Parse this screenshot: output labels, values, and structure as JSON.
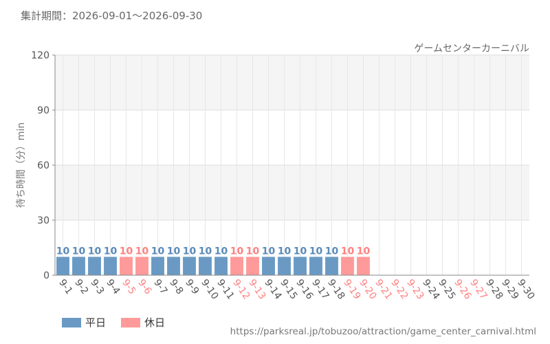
{
  "header": {
    "period": "集計期間：2026-09-01～2026-09-30",
    "attraction": "ゲームセンターカーニバル"
  },
  "footer": {
    "source": "https://parksreal.jp/tobuzoo/attraction/game_center_carnival.html"
  },
  "colors": {
    "weekday": "#6a9ac4",
    "holiday": "#ff9a9a",
    "holiday_text": "#ff8080",
    "weekday_text": "#5a8ab8"
  },
  "chart_data": {
    "type": "bar",
    "title": "",
    "ylabel": "待ち時間（分）min",
    "xlabel": "",
    "ylim": [
      0,
      120
    ],
    "yticks": [
      0,
      30,
      60,
      90,
      120
    ],
    "grid": true,
    "legend_position": "bottom-left",
    "categories": [
      "9-1",
      "9-2",
      "9-3",
      "9-4",
      "9-5",
      "9-6",
      "9-7",
      "9-8",
      "9-9",
      "9-10",
      "9-11",
      "9-12",
      "9-13",
      "9-14",
      "9-15",
      "9-16",
      "9-17",
      "9-18",
      "9-19",
      "9-20",
      "9-21",
      "9-22",
      "9-23",
      "9-24",
      "9-25",
      "9-26",
      "9-27",
      "9-28",
      "9-29",
      "9-30"
    ],
    "day_type": [
      "平日",
      "平日",
      "平日",
      "平日",
      "休日",
      "休日",
      "平日",
      "平日",
      "平日",
      "平日",
      "平日",
      "休日",
      "休日",
      "平日",
      "平日",
      "平日",
      "平日",
      "平日",
      "休日",
      "休日",
      "休日",
      "休日",
      "休日",
      "平日",
      "平日",
      "休日",
      "休日",
      "平日",
      "平日",
      "平日"
    ],
    "values": [
      10,
      10,
      10,
      10,
      10,
      10,
      10,
      10,
      10,
      10,
      10,
      10,
      10,
      10,
      10,
      10,
      10,
      10,
      10,
      10,
      null,
      null,
      null,
      null,
      null,
      null,
      null,
      null,
      null,
      null
    ],
    "series": [
      {
        "name": "平日",
        "color": "#6a9ac4"
      },
      {
        "name": "休日",
        "color": "#ff9a9a"
      }
    ]
  }
}
